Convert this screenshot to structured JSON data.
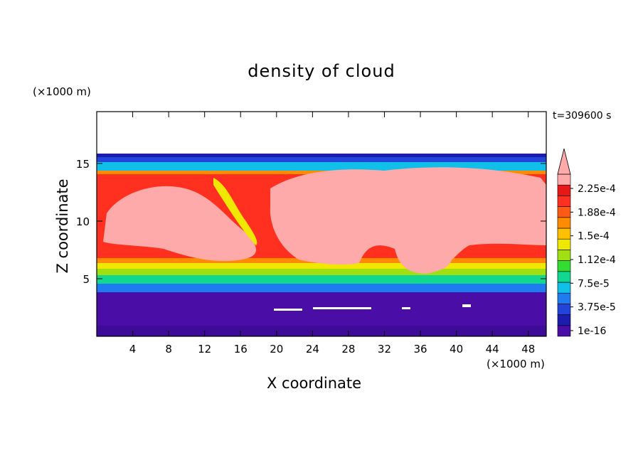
{
  "chart_data": {
    "type": "heatmap",
    "title": "density of cloud",
    "xlabel": "X coordinate",
    "ylabel": "Z coordinate",
    "x_unit": "(×1000 m)",
    "z_unit": "(×1000 m)",
    "time_label": "t=309600 s",
    "xlim": [
      0,
      50
    ],
    "ylim": [
      0,
      19.5
    ],
    "x_ticks": [
      4,
      8,
      12,
      16,
      20,
      24,
      28,
      32,
      36,
      40,
      44,
      48
    ],
    "y_ticks": [
      5,
      10,
      15
    ],
    "colorbar": {
      "labels": [
        "2.25e-4",
        "1.88e-4",
        "1.5e-4",
        "1.12e-4",
        "7.5e-5",
        "3.75e-5",
        "1e-16"
      ],
      "colors": [
        "#4a0da6",
        "#1c1cb0",
        "#2244d8",
        "#1e7cf0",
        "#10c0e8",
        "#10d890",
        "#30dd30",
        "#a0e010",
        "#f0e800",
        "#ffc000",
        "#ff8c00",
        "#ff5a14",
        "#ff3020",
        "#e81818",
        "#ffaaaa"
      ],
      "extend_max": true
    },
    "fields": {
      "cloud_top_km": 16,
      "cloud_base_km": 4,
      "max_colour": "#ffaaaa",
      "low_colour": "#4a0da6"
    }
  }
}
